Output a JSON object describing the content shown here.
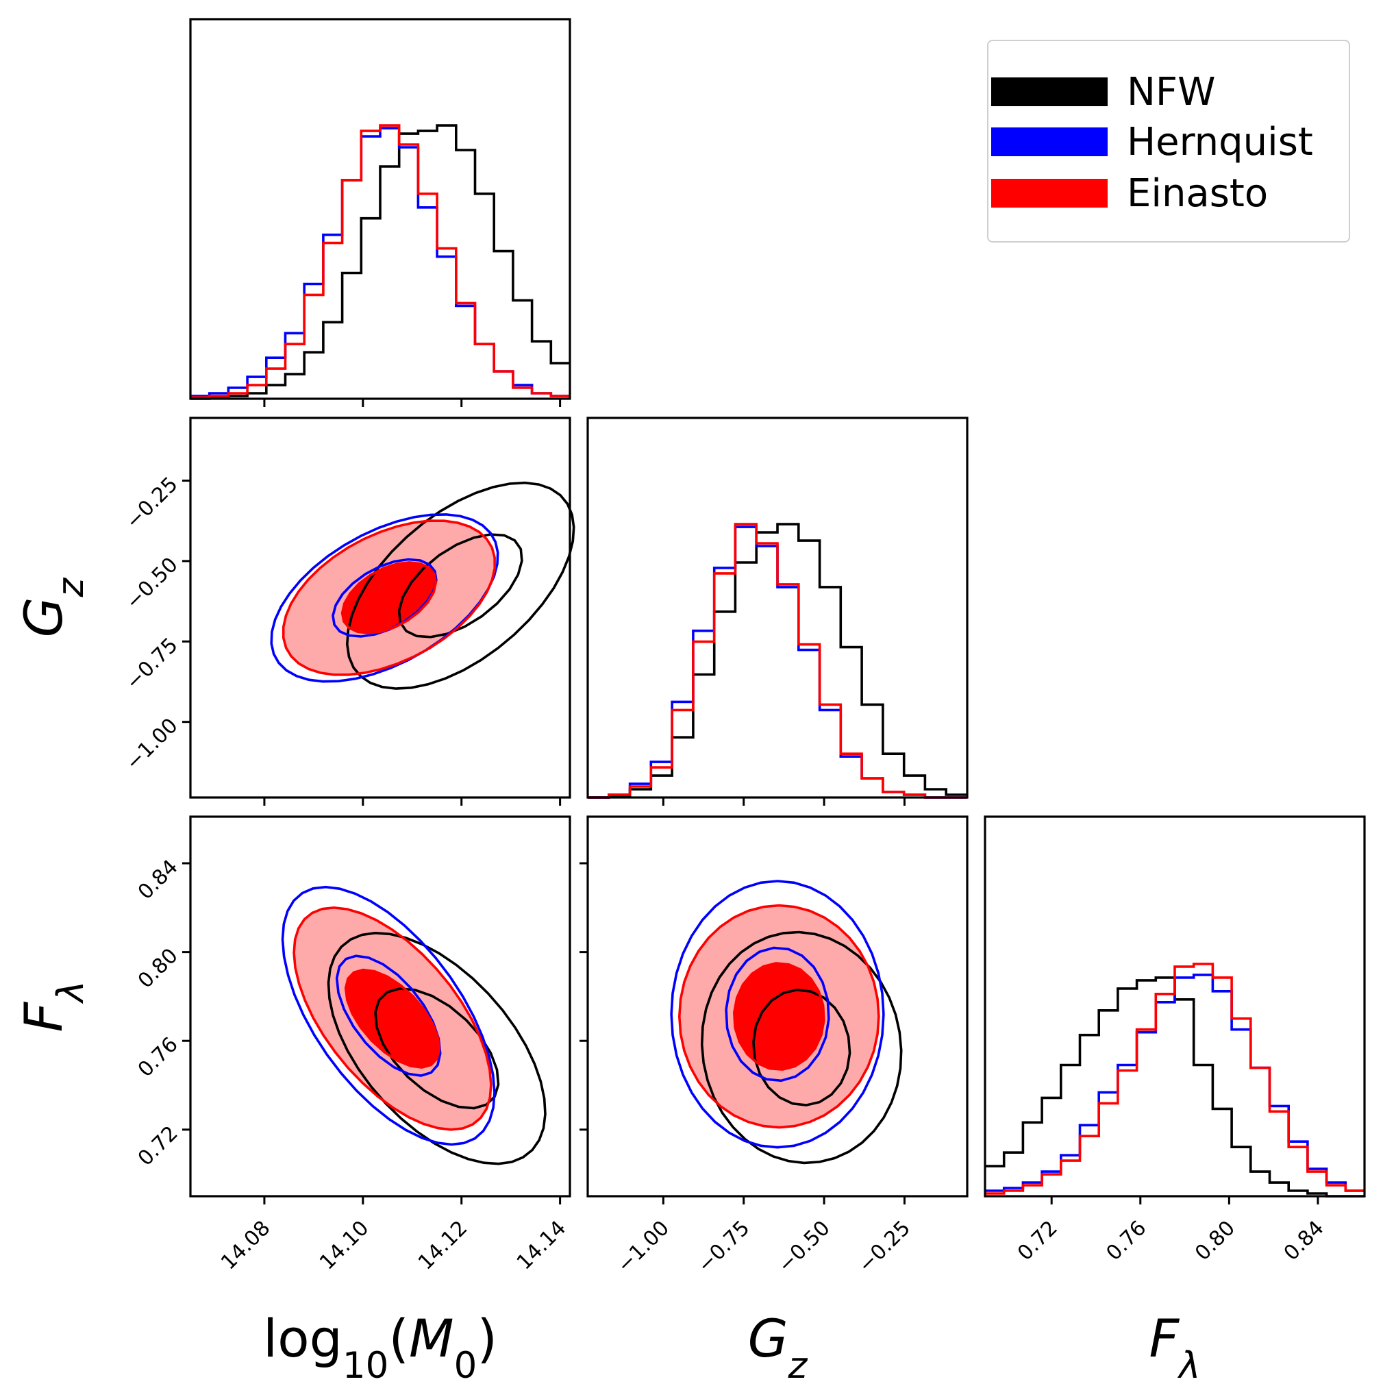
{
  "chart_data": {
    "type": "corner",
    "parameters": [
      {
        "name": "log10(M0)",
        "range": [
          14.065,
          14.142
        ],
        "ticks": [
          "14.08",
          "14.10",
          "14.12",
          "14.14"
        ],
        "tick_values": [
          14.08,
          14.1,
          14.12,
          14.14
        ]
      },
      {
        "name": "G_z",
        "range": [
          -1.235,
          -0.055
        ],
        "ticks": [
          "-1.00",
          "-0.75",
          "-0.50",
          "-0.25"
        ],
        "tick_values": [
          -1.0,
          -0.75,
          -0.5,
          -0.25
        ]
      },
      {
        "name": "F_lambda",
        "range": [
          0.69,
          0.861
        ],
        "ticks": [
          "0.72",
          "0.76",
          "0.80",
          "0.84"
        ],
        "tick_values": [
          0.72,
          0.76,
          0.8,
          0.84
        ]
      }
    ],
    "axis_labels": {
      "x": [
        {
          "base": "log",
          "sub": "10",
          "rest": "(M",
          "sub2": "0",
          "end": ")"
        },
        {
          "base": "G",
          "sub": "z"
        },
        {
          "base": "F",
          "sub": "λ"
        }
      ],
      "y": [
        {
          "base": "G",
          "sub": "z"
        },
        {
          "base": "F",
          "sub": "λ"
        }
      ]
    },
    "legend": {
      "placement": "top-right",
      "entries": [
        {
          "label": "NFW",
          "color": "#000000"
        },
        {
          "label": "Hernquist",
          "color": "#0000ff"
        },
        {
          "label": "Einasto",
          "color": "#ff0000"
        }
      ]
    },
    "series": [
      {
        "name": "NFW",
        "color": "#000000",
        "hist": [
          {
            "edges": [
              14.065,
              14.142
            ],
            "values": [
              0.0,
              0.005,
              0.01,
              0.02,
              0.05,
              0.09,
              0.17,
              0.28,
              0.46,
              0.66,
              0.85,
              0.97,
              0.98,
              1.0,
              0.91,
              0.75,
              0.54,
              0.36,
              0.21,
              0.13
            ]
          },
          {
            "edges": [
              -1.235,
              -0.055
            ],
            "values": [
              0.0,
              0.005,
              0.03,
              0.08,
              0.22,
              0.45,
              0.68,
              0.86,
              0.97,
              1.0,
              0.94,
              0.77,
              0.55,
              0.34,
              0.16,
              0.08,
              0.03,
              0.01
            ]
          },
          {
            "edges": [
              0.69,
              0.861
            ],
            "values": [
              0.11,
              0.16,
              0.27,
              0.36,
              0.48,
              0.59,
              0.68,
              0.76,
              0.79,
              0.8,
              0.72,
              0.48,
              0.32,
              0.18,
              0.09,
              0.05,
              0.02,
              0.01,
              0.0,
              0.0
            ]
          }
        ],
        "contours_2d": {
          "M0_Gz": {
            "center": [
              14.1198,
              -0.5767
            ],
            "inner": [
              0.0125,
              0.16,
              0.55
            ],
            "outer": [
              0.023,
              0.32,
              0.55
            ]
          },
          "M0_Flam": {
            "center": [
              14.115,
              0.7566
            ],
            "inner": [
              0.0125,
              0.027,
              -0.55
            ],
            "outer": [
              0.022,
              0.052,
              -0.55
            ]
          },
          "Gz_Flam": {
            "center": [
              -0.57,
              0.757
            ],
            "inner": [
              0.15,
              0.026,
              -0.05
            ],
            "outer": [
              0.31,
              0.052,
              -0.05
            ]
          }
        }
      },
      {
        "name": "Hernquist",
        "color": "#0000ff",
        "hist": [
          {
            "edges": [
              14.065,
              14.142
            ],
            "values": [
              0.01,
              0.02,
              0.04,
              0.08,
              0.15,
              0.24,
              0.42,
              0.6,
              0.8,
              0.96,
              0.99,
              0.92,
              0.7,
              0.52,
              0.34,
              0.2,
              0.1,
              0.05,
              0.02,
              0.01
            ]
          },
          {
            "edges": [
              -1.235,
              -0.055
            ],
            "values": [
              0.0,
              0.01,
              0.05,
              0.13,
              0.35,
              0.61,
              0.84,
              0.99,
              0.92,
              0.77,
              0.54,
              0.32,
              0.15,
              0.07,
              0.02,
              0.01,
              0.0,
              0.0
            ]
          },
          {
            "edges": [
              0.69,
              0.861
            ],
            "values": [
              0.02,
              0.03,
              0.05,
              0.09,
              0.15,
              0.26,
              0.38,
              0.48,
              0.6,
              0.71,
              0.8,
              0.81,
              0.75,
              0.61,
              0.47,
              0.33,
              0.2,
              0.1,
              0.05,
              0.02
            ]
          }
        ],
        "contours_2d": {
          "M0_Gz": {
            "center": [
              14.1044,
              -0.6147
            ],
            "inner": [
              0.0105,
              0.12,
              0.5
            ],
            "outer": [
              0.023,
              0.26,
              0.5
            ]
          },
          "M0_Flam": {
            "center": [
              14.1052,
              0.7713
            ],
            "inner": [
              0.0105,
              0.027,
              -0.6
            ],
            "outer": [
              0.0215,
              0.058,
              -0.6
            ]
          },
          "Gz_Flam": {
            "center": [
              -0.645,
              0.772
            ],
            "inner": [
              0.16,
              0.03,
              0.0
            ],
            "outer": [
              0.33,
              0.06,
              0.0
            ]
          }
        }
      },
      {
        "name": "Einasto",
        "color": "#ff0000",
        "hist": [
          {
            "edges": [
              14.065,
              14.142
            ],
            "values": [
              0.005,
              0.01,
              0.02,
              0.05,
              0.11,
              0.2,
              0.38,
              0.57,
              0.8,
              0.98,
              1.0,
              0.93,
              0.75,
              0.55,
              0.35,
              0.2,
              0.1,
              0.04,
              0.02,
              0.01
            ]
          },
          {
            "edges": [
              -1.235,
              -0.055
            ],
            "values": [
              0.0,
              0.01,
              0.04,
              0.11,
              0.32,
              0.57,
              0.82,
              1.0,
              0.93,
              0.78,
              0.56,
              0.34,
              0.16,
              0.07,
              0.02,
              0.01,
              0.0,
              0.0
            ]
          },
          {
            "edges": [
              0.69,
              0.861
            ],
            "values": [
              0.01,
              0.02,
              0.04,
              0.08,
              0.13,
              0.22,
              0.34,
              0.46,
              0.61,
              0.74,
              0.84,
              0.85,
              0.8,
              0.65,
              0.47,
              0.31,
              0.18,
              0.09,
              0.04,
              0.02
            ]
          }
        ],
        "contours_2d": {
          "M0_Gz": {
            "center": [
              14.1053,
              -0.6141
            ],
            "inner": [
              0.0095,
              0.11,
              0.45
            ],
            "outer": [
              0.0215,
              0.24,
              0.45
            ]
          },
          "M0_Flam": {
            "center": [
              14.106,
              0.77
            ],
            "inner": [
              0.0095,
              0.022,
              -0.6
            ],
            "outer": [
              0.02,
              0.05,
              -0.6
            ]
          },
          "Gz_Flam": {
            "center": [
              -0.64,
              0.771
            ],
            "inner": [
              0.14,
              0.024,
              0.0
            ],
            "outer": [
              0.31,
              0.05,
              0.0
            ]
          }
        }
      }
    ]
  }
}
